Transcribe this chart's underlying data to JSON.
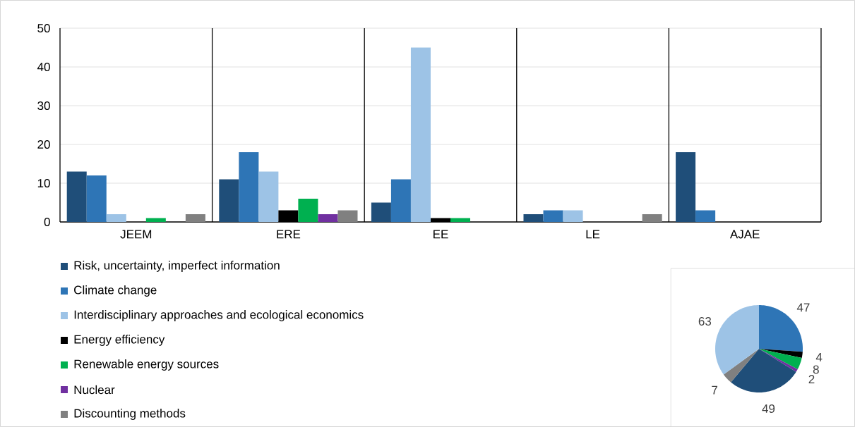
{
  "chart_data": [
    {
      "type": "bar",
      "categories": [
        "JEEM",
        "ERE",
        "EE",
        "LE",
        "AJAE"
      ],
      "ylim": [
        0,
        50
      ],
      "yticks": [
        0,
        10,
        20,
        30,
        40,
        50
      ],
      "grid": "y",
      "legend": "bottom left",
      "series": [
        {
          "name": "Risk, uncertainty, imperfect information",
          "color": "#1f4e79",
          "values": [
            13,
            11,
            5,
            2,
            18
          ]
        },
        {
          "name": "Climate change",
          "color": "#2e75b6",
          "values": [
            12,
            18,
            11,
            3,
            3
          ]
        },
        {
          "name": "Interdisciplinary approaches and ecological economics",
          "color": "#9dc3e6",
          "values": [
            2,
            13,
            45,
            3,
            0
          ]
        },
        {
          "name": "Energy efficiency",
          "color": "#000000",
          "values": [
            0,
            3,
            1,
            0,
            0
          ]
        },
        {
          "name": "Renewable energy sources",
          "color": "#00b050",
          "values": [
            1,
            6,
            1,
            0,
            0
          ]
        },
        {
          "name": "Nuclear",
          "color": "#7030a0",
          "values": [
            0,
            2,
            0,
            0,
            0
          ]
        },
        {
          "name": "Discounting methods",
          "color": "#808080",
          "values": [
            2,
            3,
            0,
            2,
            0
          ]
        }
      ]
    },
    {
      "type": "pie",
      "categories": [
        null,
        null,
        null,
        null,
        null,
        null,
        null
      ],
      "values": [
        47,
        4,
        8,
        2,
        49,
        7,
        63
      ],
      "colors": [
        "#2e75b6",
        "#000000",
        "#00b050",
        "#7030a0",
        "#1f4e79",
        "#808080",
        "#9dc3e6"
      ],
      "data_labels": true
    }
  ]
}
